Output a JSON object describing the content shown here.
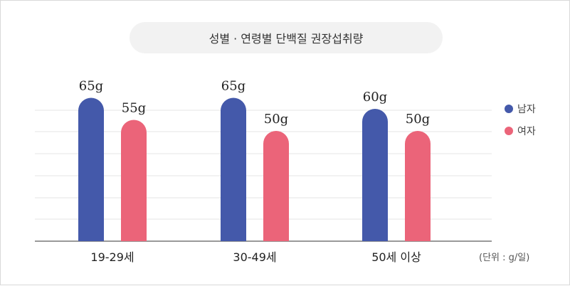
{
  "chart_data": {
    "type": "bar",
    "title": "성별 · 연령별 단백질 권장섭취량",
    "categories": [
      "19-29세",
      "30-49세",
      "50세 이상"
    ],
    "series": [
      {
        "name": "남자",
        "values": [
          65,
          65,
          60
        ],
        "labels": [
          "65g",
          "65g",
          "60g"
        ],
        "color": "#4459aa"
      },
      {
        "name": "여자",
        "values": [
          55,
          50,
          50
        ],
        "labels": [
          "55g",
          "50g",
          "50g"
        ],
        "color": "#eb6479"
      }
    ],
    "unit": "(단위 : g/일)",
    "ylim": [
      0,
      65
    ],
    "grid": true,
    "legend": "right"
  }
}
